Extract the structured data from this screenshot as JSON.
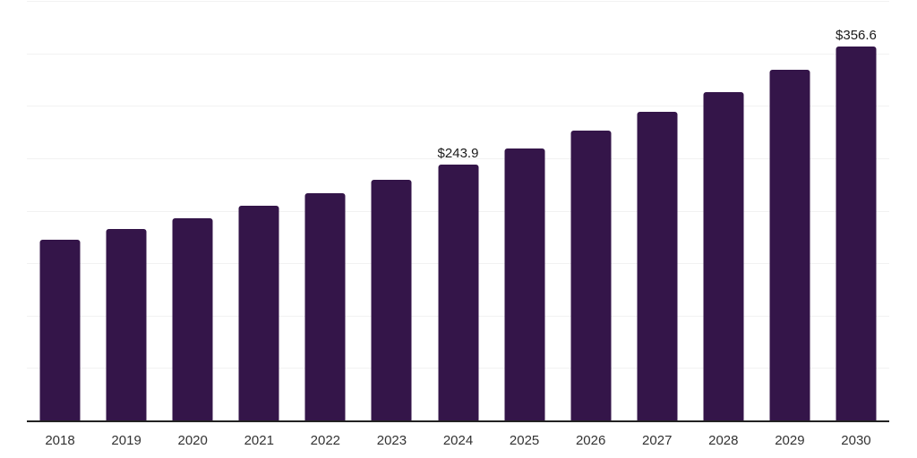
{
  "chart_data": {
    "type": "bar",
    "title": "",
    "xlabel": "",
    "ylabel": "",
    "categories": [
      "2018",
      "2019",
      "2020",
      "2021",
      "2022",
      "2023",
      "2024",
      "2025",
      "2026",
      "2027",
      "2028",
      "2029",
      "2030"
    ],
    "values": [
      172.3,
      182.2,
      192.9,
      204.4,
      216.9,
      229.4,
      243.9,
      259.3,
      276.3,
      294.2,
      313.2,
      334.1,
      356.6
    ],
    "value_labels": [
      "",
      "",
      "",
      "",
      "",
      "",
      "$243.9",
      "",
      "",
      "",
      "",
      "",
      "$356.6"
    ],
    "ylim": [
      0,
      400
    ],
    "gridline_step": 50,
    "grid": "horizontal",
    "legend_position": "none",
    "colors": {
      "bar": "#341549",
      "axis_line": "#222222",
      "gridline": "#f2f2f2",
      "value_label": "#1a1a1a",
      "tick_label": "#333333",
      "background": "#ffffff"
    }
  }
}
